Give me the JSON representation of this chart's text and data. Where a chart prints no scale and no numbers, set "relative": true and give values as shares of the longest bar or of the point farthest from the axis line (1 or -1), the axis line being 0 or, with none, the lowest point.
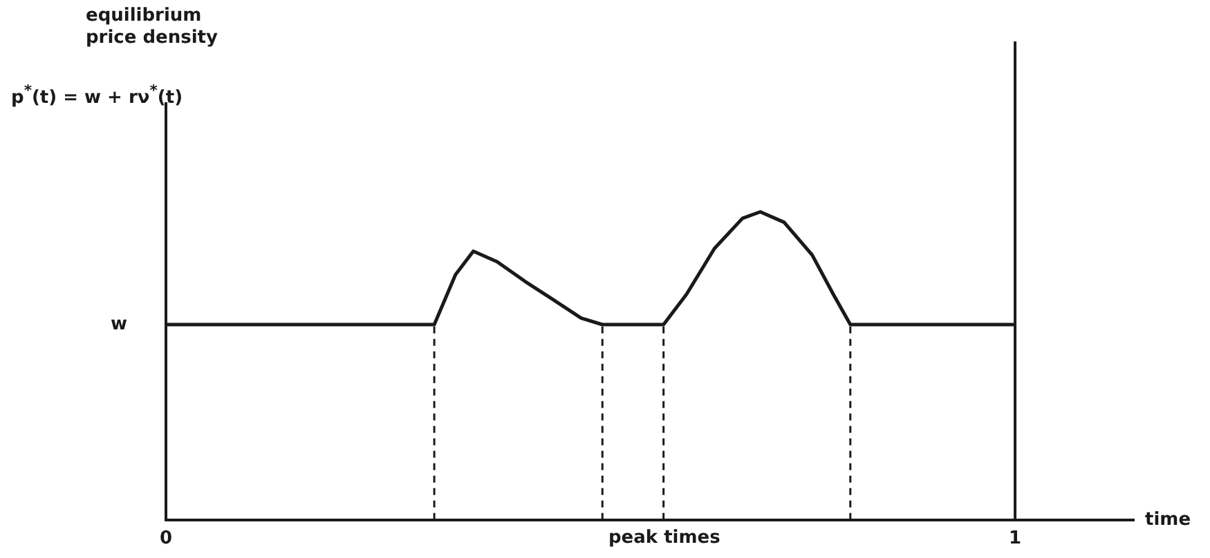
{
  "chart_data": {
    "type": "line",
    "relative": true,
    "xlabel": "time",
    "x": [
      0,
      0.316,
      0.341,
      0.362,
      0.39,
      0.423,
      0.456,
      0.489,
      0.514,
      0.586,
      0.613,
      0.646,
      0.679,
      0.7,
      0.728,
      0.761,
      0.786,
      0.806,
      1
    ],
    "series": [
      {
        "color": "#1a1a1a",
        "values": [
          0.634,
          0.634,
          0.796,
          0.872,
          0.838,
          0.774,
          0.715,
          0.655,
          0.634,
          0.634,
          0.732,
          0.881,
          0.979,
          1.0,
          0.966,
          0.86,
          0.732,
          0.634,
          0.634
        ]
      }
    ],
    "xlim": [
      0,
      1.14
    ],
    "xticks": [
      0,
      1
    ],
    "grid": false,
    "legend": false,
    "ref_lines": [
      {
        "axis": "x",
        "value": 0.316,
        "line_style": "dashed"
      },
      {
        "axis": "x",
        "value": 0.514,
        "line_style": "dashed"
      },
      {
        "axis": "x",
        "value": 0.586,
        "line_style": "dashed"
      },
      {
        "axis": "x",
        "value": 0.806,
        "line_style": "dashed"
      },
      {
        "axis": "x",
        "value": 1,
        "line_style": "solid"
      }
    ],
    "annotations": [
      "equilibrium price density",
      "p$^{*}$(t) = w + rν$^{*}$(t)",
      {
        "text": "w",
        "x": 0,
        "y": 0.634
      },
      "peak times"
    ]
  }
}
